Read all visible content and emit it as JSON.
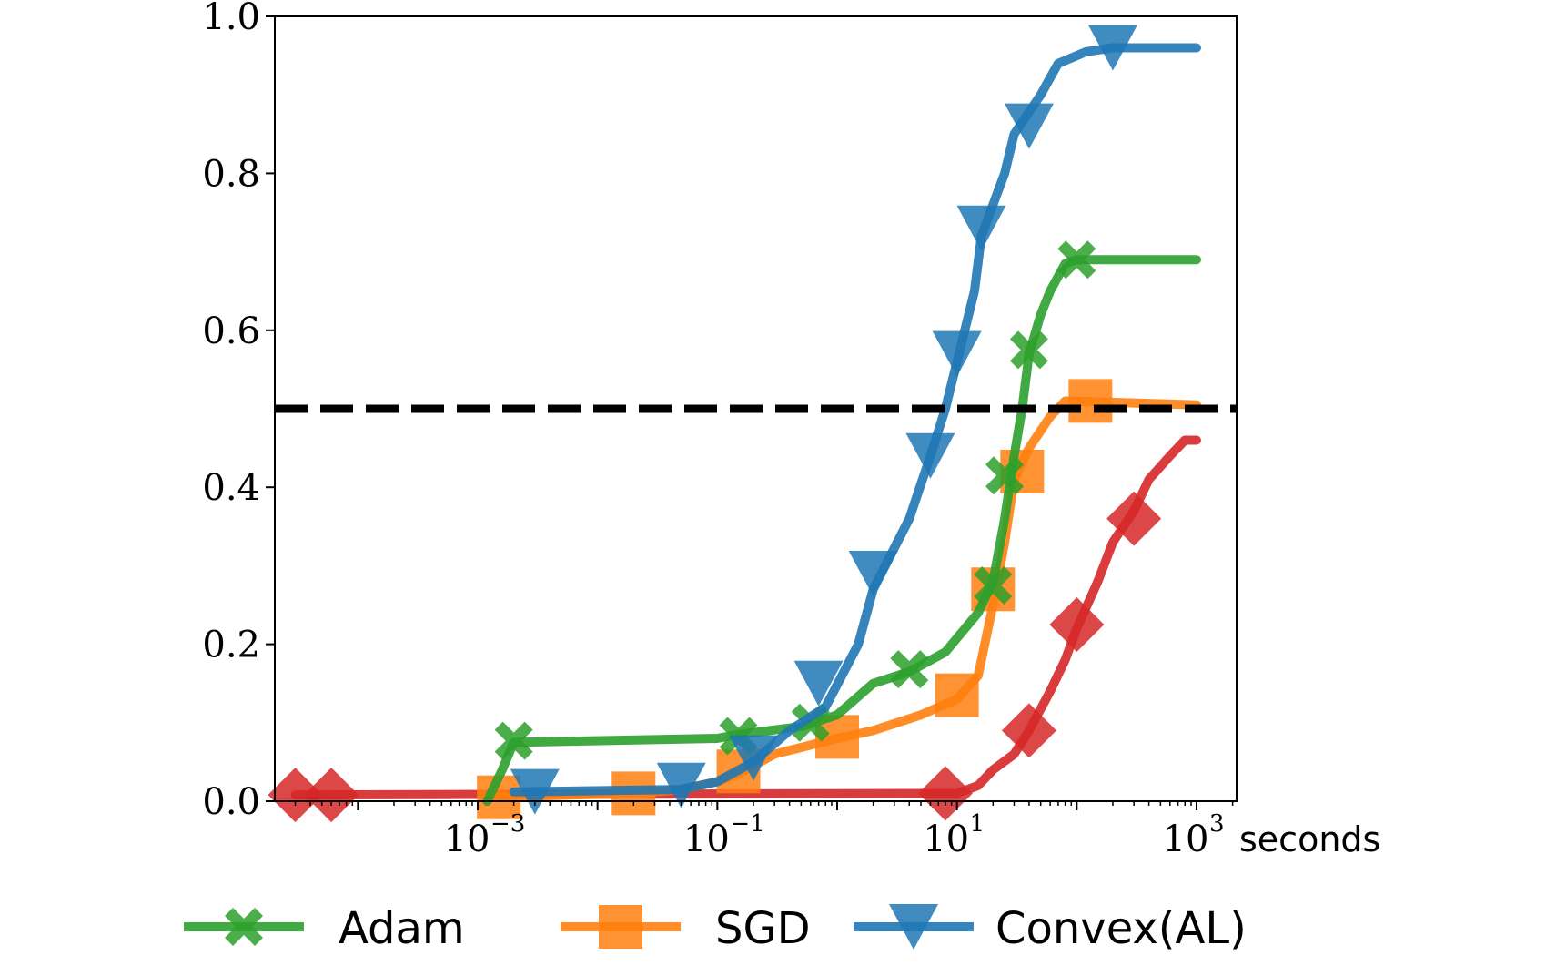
{
  "chart_data": {
    "type": "line",
    "x_scale": "log",
    "xlim": [
      1e-05,
      2000
    ],
    "ylim": [
      0,
      1
    ],
    "xlabel": "seconds",
    "ylabel": "",
    "grid": false,
    "legend_position": "bottom",
    "x_ticks": [
      {
        "value": 0.001,
        "base": "10",
        "exp": "−3"
      },
      {
        "value": 0.1,
        "base": "10",
        "exp": "−1"
      },
      {
        "value": 10,
        "base": "10",
        "exp": "1"
      },
      {
        "value": 1000,
        "base": "10",
        "exp": "3"
      }
    ],
    "y_ticks": [
      "0.0",
      "0.2",
      "0.4",
      "0.6",
      "0.8",
      "1.0"
    ],
    "reference_line": {
      "y": 0.5,
      "style": "dashed",
      "color": "#000000"
    },
    "series": [
      {
        "name": "Adam",
        "color": "#2ca02c",
        "marker": "X",
        "points": [
          [
            0.0012,
            0.0
          ],
          [
            0.0016,
            0.04
          ],
          [
            0.002,
            0.075
          ],
          [
            0.1,
            0.08
          ],
          [
            0.15,
            0.085
          ],
          [
            0.5,
            0.095
          ],
          [
            1.0,
            0.11
          ],
          [
            2.0,
            0.15
          ],
          [
            4.0,
            0.165
          ],
          [
            8.0,
            0.19
          ],
          [
            15.0,
            0.24
          ],
          [
            20.0,
            0.28
          ],
          [
            25.0,
            0.36
          ],
          [
            30.0,
            0.44
          ],
          [
            35.0,
            0.5
          ],
          [
            40.0,
            0.57
          ],
          [
            50.0,
            0.62
          ],
          [
            60.0,
            0.65
          ],
          [
            80.0,
            0.685
          ],
          [
            100.0,
            0.69
          ],
          [
            1000.0,
            0.69
          ]
        ],
        "markers": [
          [
            0.002,
            0.077
          ],
          [
            0.15,
            0.083
          ],
          [
            0.6,
            0.1
          ],
          [
            4.0,
            0.168
          ],
          [
            20.0,
            0.275
          ],
          [
            25.0,
            0.415
          ],
          [
            40.0,
            0.575
          ],
          [
            100.0,
            0.69
          ]
        ]
      },
      {
        "name": "SGD",
        "color": "#ff7f0e",
        "marker": "s",
        "points": [
          [
            0.0012,
            0.005
          ],
          [
            0.02,
            0.01
          ],
          [
            0.05,
            0.015
          ],
          [
            0.1,
            0.025
          ],
          [
            0.15,
            0.035
          ],
          [
            0.3,
            0.06
          ],
          [
            1.0,
            0.08
          ],
          [
            2.0,
            0.09
          ],
          [
            5.0,
            0.11
          ],
          [
            10.0,
            0.13
          ],
          [
            15.0,
            0.16
          ],
          [
            20.0,
            0.25
          ],
          [
            25.0,
            0.33
          ],
          [
            30.0,
            0.41
          ],
          [
            40.0,
            0.45
          ],
          [
            60.0,
            0.49
          ],
          [
            80.0,
            0.51
          ],
          [
            1000.0,
            0.505
          ]
        ],
        "markers": [
          [
            0.0015,
            0.005
          ],
          [
            0.02,
            0.01
          ],
          [
            0.15,
            0.038
          ],
          [
            1.0,
            0.082
          ],
          [
            10.0,
            0.135
          ],
          [
            20.0,
            0.27
          ],
          [
            35.0,
            0.42
          ],
          [
            130.0,
            0.51
          ]
        ]
      },
      {
        "name": "Convex(AL)",
        "color": "#1f77b4",
        "marker": "v",
        "points": [
          [
            0.002,
            0.012
          ],
          [
            0.05,
            0.015
          ],
          [
            0.1,
            0.025
          ],
          [
            0.2,
            0.05
          ],
          [
            0.4,
            0.09
          ],
          [
            0.8,
            0.12
          ],
          [
            1.5,
            0.2
          ],
          [
            2.0,
            0.27
          ],
          [
            4.0,
            0.36
          ],
          [
            6.0,
            0.44
          ],
          [
            8.0,
            0.5
          ],
          [
            10.0,
            0.56
          ],
          [
            14.0,
            0.65
          ],
          [
            16.0,
            0.72
          ],
          [
            20.0,
            0.76
          ],
          [
            25.0,
            0.8
          ],
          [
            30.0,
            0.85
          ],
          [
            50.0,
            0.9
          ],
          [
            70.0,
            0.94
          ],
          [
            120.0,
            0.955
          ],
          [
            200.0,
            0.96
          ],
          [
            1000.0,
            0.96
          ]
        ],
        "markers": [
          [
            0.003,
            0.012
          ],
          [
            0.05,
            0.02
          ],
          [
            0.2,
            0.055
          ],
          [
            0.7,
            0.15
          ],
          [
            2.0,
            0.29
          ],
          [
            6.0,
            0.44
          ],
          [
            10.0,
            0.57
          ],
          [
            16.0,
            0.73
          ],
          [
            40.0,
            0.86
          ],
          [
            200.0,
            0.96
          ]
        ]
      },
      {
        "name": "",
        "color": "#d62728",
        "marker": "D",
        "points": [
          [
            3e-05,
            0.008
          ],
          [
            10.0,
            0.01
          ],
          [
            15.0,
            0.02
          ],
          [
            20.0,
            0.04
          ],
          [
            30.0,
            0.06
          ],
          [
            40.0,
            0.09
          ],
          [
            60.0,
            0.14
          ],
          [
            80.0,
            0.18
          ],
          [
            100.0,
            0.22
          ],
          [
            150.0,
            0.28
          ],
          [
            200.0,
            0.33
          ],
          [
            300.0,
            0.37
          ],
          [
            400.0,
            0.41
          ],
          [
            600.0,
            0.44
          ],
          [
            800.0,
            0.46
          ],
          [
            1000.0,
            0.46
          ]
        ],
        "markers": [
          [
            3e-05,
            0.008
          ],
          [
            6e-05,
            0.008
          ],
          [
            8.0,
            0.01
          ],
          [
            40.0,
            0.09
          ],
          [
            100.0,
            0.225
          ],
          [
            300.0,
            0.36
          ]
        ]
      }
    ],
    "legend": [
      {
        "label": "Adam",
        "color": "#2ca02c",
        "marker": "X"
      },
      {
        "label": "SGD",
        "color": "#ff7f0e",
        "marker": "s"
      },
      {
        "label": "Convex(AL)",
        "color": "#1f77b4",
        "marker": "v"
      }
    ]
  }
}
